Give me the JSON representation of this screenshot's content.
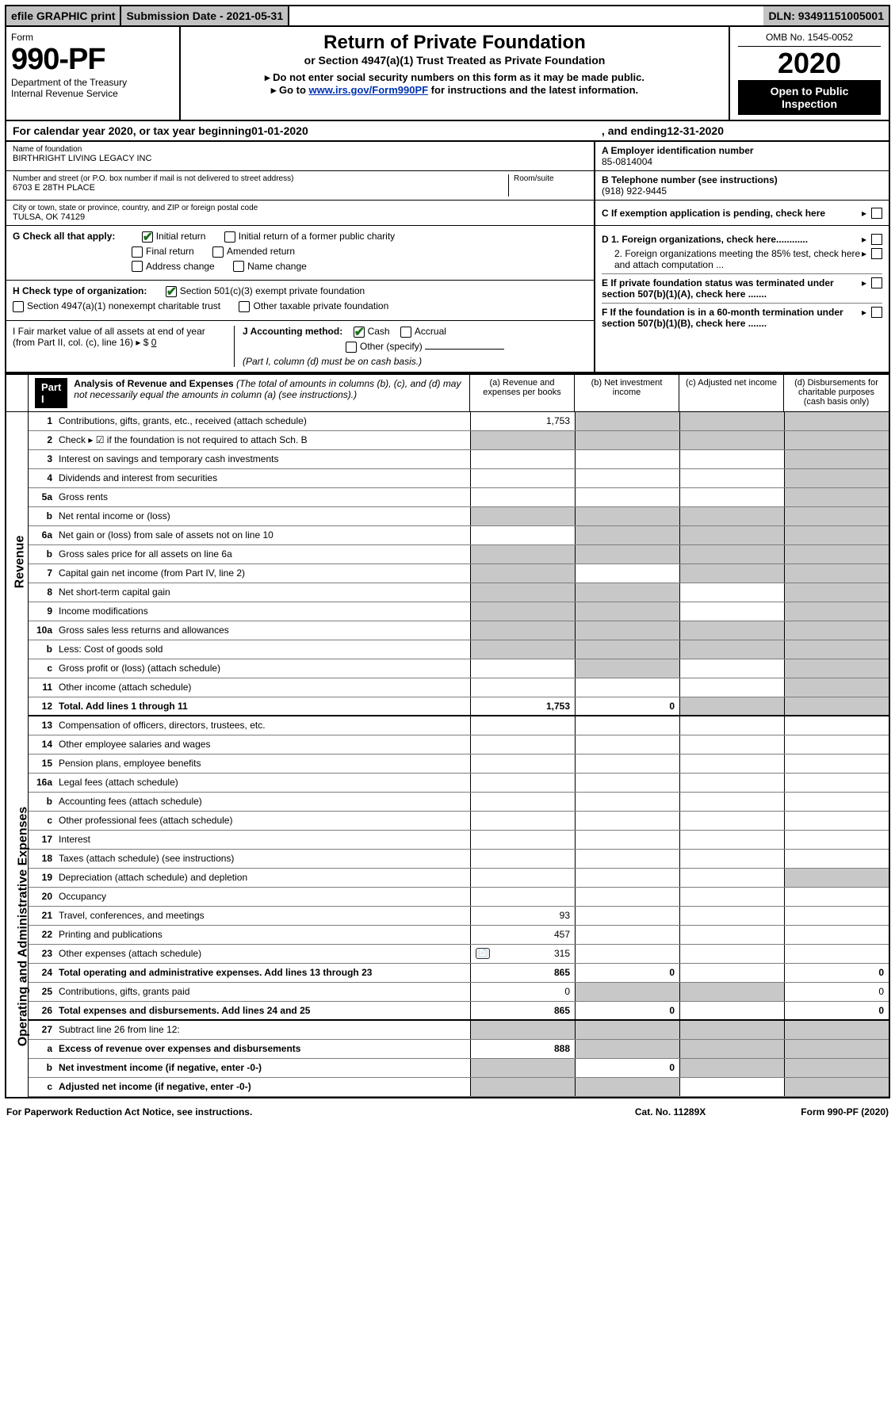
{
  "topbar": {
    "efile": "efile GRAPHIC print",
    "subdate_label": "Submission Date - ",
    "subdate": "2021-05-31",
    "dln_label": "DLN: ",
    "dln": "93491151005001"
  },
  "header": {
    "form_label": "Form",
    "form_no": "990-PF",
    "dept1": "Department of the Treasury",
    "dept2": "Internal Revenue Service",
    "title1": "Return of Private Foundation",
    "title2": "or Section 4947(a)(1) Trust Treated as Private Foundation",
    "instr1": "▸ Do not enter social security numbers on this form as it may be made public.",
    "instr2_prefix": "▸ Go to ",
    "instr2_link": "www.irs.gov/Form990PF",
    "instr2_suffix": " for instructions and the latest information.",
    "omb": "OMB No. 1545-0052",
    "year": "2020",
    "openpub": "Open to Public Inspection"
  },
  "yearrow": {
    "p1": "For calendar year 2020, or tax year beginning ",
    "begin": "01-01-2020",
    "p2": ", and ending ",
    "end": "12-31-2020"
  },
  "info": {
    "name_label": "Name of foundation",
    "name": "BIRTHRIGHT LIVING LEGACY INC",
    "addr_label": "Number and street (or P.O. box number if mail is not delivered to street address)",
    "room_label": "Room/suite",
    "addr": "6703 E 28TH PLACE",
    "city_label": "City or town, state or province, country, and ZIP or foreign postal code",
    "city": "TULSA, OK  74129",
    "A_label": "A Employer identification number",
    "A_val": "85-0814004",
    "B_label": "B Telephone number (see instructions)",
    "B_val": "(918) 922-9445",
    "C_label": "C If exemption application is pending, check here",
    "D1_label": "D 1. Foreign organizations, check here............",
    "D2_label": "2. Foreign organizations meeting the 85% test, check here and attach computation ...",
    "E_label": "E  If private foundation status was terminated under section 507(b)(1)(A), check here .......",
    "F_label": "F  If the foundation is in a 60-month termination under section 507(b)(1)(B), check here .......",
    "G_label": "G Check all that apply:",
    "G_opts": [
      "Initial return",
      "Initial return of a former public charity",
      "Final return",
      "Amended return",
      "Address change",
      "Name change"
    ],
    "G_checked": [
      true,
      false,
      false,
      false,
      false,
      false
    ],
    "H_label": "H Check type of organization:",
    "H_opts": [
      "Section 501(c)(3) exempt private foundation",
      "Section 4947(a)(1) nonexempt charitable trust",
      "Other taxable private foundation"
    ],
    "H_checked": [
      true,
      false,
      false
    ],
    "I_label": "I Fair market value of all assets at end of year (from Part II, col. (c), line 16) ▸ $ ",
    "I_val": "0",
    "J_label": "J Accounting method:",
    "J_opts": [
      "Cash",
      "Accrual",
      "Other (specify)"
    ],
    "J_checked": [
      true,
      false,
      false
    ],
    "J_note": "(Part I, column (d) must be on cash basis.)"
  },
  "part1": {
    "tag": "Part I",
    "title": "Analysis of Revenue and Expenses ",
    "subtitle": "(The total of amounts in columns (b), (c), and (d) may not necessarily equal the amounts in column (a) (see instructions).)",
    "cols": [
      "(a)  Revenue and expenses per books",
      "(b)  Net investment income",
      "(c)  Adjusted net income",
      "(d)  Disbursements for charitable purposes (cash basis only)"
    ]
  },
  "sides": {
    "rev": "Revenue",
    "exp": "Operating and Administrative Expenses"
  },
  "rows": [
    {
      "n": "1",
      "d": "Contributions, gifts, grants, etc., received (attach schedule)",
      "a": "1,753",
      "shade": [
        false,
        true,
        true,
        true
      ]
    },
    {
      "n": "2",
      "d": "Check ▸ ☑ if the foundation is not required to attach Sch. B",
      "shade": [
        true,
        true,
        true,
        true
      ]
    },
    {
      "n": "3",
      "d": "Interest on savings and temporary cash investments",
      "shade": [
        false,
        false,
        false,
        true
      ]
    },
    {
      "n": "4",
      "d": "Dividends and interest from securities",
      "shade": [
        false,
        false,
        false,
        true
      ]
    },
    {
      "n": "5a",
      "d": "Gross rents",
      "shade": [
        false,
        false,
        false,
        true
      ]
    },
    {
      "n": "b",
      "d": "Net rental income or (loss)",
      "shade": [
        true,
        true,
        true,
        true
      ]
    },
    {
      "n": "6a",
      "d": "Net gain or (loss) from sale of assets not on line 10",
      "shade": [
        false,
        true,
        true,
        true
      ]
    },
    {
      "n": "b",
      "d": "Gross sales price for all assets on line 6a",
      "shade": [
        true,
        true,
        true,
        true
      ]
    },
    {
      "n": "7",
      "d": "Capital gain net income (from Part IV, line 2)",
      "shade": [
        true,
        false,
        true,
        true
      ]
    },
    {
      "n": "8",
      "d": "Net short-term capital gain",
      "shade": [
        true,
        true,
        false,
        true
      ]
    },
    {
      "n": "9",
      "d": "Income modifications",
      "shade": [
        true,
        true,
        false,
        true
      ]
    },
    {
      "n": "10a",
      "d": "Gross sales less returns and allowances",
      "shade": [
        true,
        true,
        true,
        true
      ]
    },
    {
      "n": "b",
      "d": "Less: Cost of goods sold",
      "shade": [
        true,
        true,
        true,
        true
      ]
    },
    {
      "n": "c",
      "d": "Gross profit or (loss) (attach schedule)",
      "shade": [
        false,
        true,
        false,
        true
      ]
    },
    {
      "n": "11",
      "d": "Other income (attach schedule)",
      "shade": [
        false,
        false,
        false,
        true
      ]
    },
    {
      "n": "12",
      "d": "Total. Add lines 1 through 11",
      "a": "1,753",
      "b": "0",
      "bold": true,
      "thick": true,
      "shade": [
        false,
        false,
        true,
        true
      ]
    },
    {
      "n": "13",
      "d": "Compensation of officers, directors, trustees, etc.",
      "shade": [
        false,
        false,
        false,
        false
      ]
    },
    {
      "n": "14",
      "d": "Other employee salaries and wages",
      "shade": [
        false,
        false,
        false,
        false
      ]
    },
    {
      "n": "15",
      "d": "Pension plans, employee benefits",
      "shade": [
        false,
        false,
        false,
        false
      ]
    },
    {
      "n": "16a",
      "d": "Legal fees (attach schedule)",
      "shade": [
        false,
        false,
        false,
        false
      ]
    },
    {
      "n": "b",
      "d": "Accounting fees (attach schedule)",
      "shade": [
        false,
        false,
        false,
        false
      ]
    },
    {
      "n": "c",
      "d": "Other professional fees (attach schedule)",
      "shade": [
        false,
        false,
        false,
        false
      ]
    },
    {
      "n": "17",
      "d": "Interest",
      "shade": [
        false,
        false,
        false,
        false
      ]
    },
    {
      "n": "18",
      "d": "Taxes (attach schedule) (see instructions)",
      "shade": [
        false,
        false,
        false,
        false
      ]
    },
    {
      "n": "19",
      "d": "Depreciation (attach schedule) and depletion",
      "shade": [
        false,
        false,
        false,
        true
      ]
    },
    {
      "n": "20",
      "d": "Occupancy",
      "shade": [
        false,
        false,
        false,
        false
      ]
    },
    {
      "n": "21",
      "d": "Travel, conferences, and meetings",
      "a": "93",
      "shade": [
        false,
        false,
        false,
        false
      ]
    },
    {
      "n": "22",
      "d": "Printing and publications",
      "a": "457",
      "shade": [
        false,
        false,
        false,
        false
      ]
    },
    {
      "n": "23",
      "d": "Other expenses (attach schedule)",
      "a": "315",
      "icon": true,
      "shade": [
        false,
        false,
        false,
        false
      ]
    },
    {
      "n": "24",
      "d": "Total operating and administrative expenses. Add lines 13 through 23",
      "a": "865",
      "b": "0",
      "d4": "0",
      "bold": true,
      "shade": [
        false,
        false,
        false,
        false
      ]
    },
    {
      "n": "25",
      "d": "Contributions, gifts, grants paid",
      "a": "0",
      "d4": "0",
      "shade": [
        false,
        true,
        true,
        false
      ]
    },
    {
      "n": "26",
      "d": "Total expenses and disbursements. Add lines 24 and 25",
      "a": "865",
      "b": "0",
      "d4": "0",
      "bold": true,
      "thick": true,
      "shade": [
        false,
        false,
        false,
        false
      ]
    },
    {
      "n": "27",
      "d": "Subtract line 26 from line 12:",
      "shade": [
        true,
        true,
        true,
        true
      ]
    },
    {
      "n": "a",
      "d": "Excess of revenue over expenses and disbursements",
      "a": "888",
      "bold": true,
      "shade": [
        false,
        true,
        true,
        true
      ]
    },
    {
      "n": "b",
      "d": "Net investment income (if negative, enter -0-)",
      "b": "0",
      "bold": true,
      "shade": [
        true,
        false,
        true,
        true
      ]
    },
    {
      "n": "c",
      "d": "Adjusted net income (if negative, enter -0-)",
      "bold": true,
      "shade": [
        true,
        true,
        false,
        true
      ]
    }
  ],
  "footer": {
    "left": "For Paperwork Reduction Act Notice, see instructions.",
    "mid": "Cat. No. 11289X",
    "right": "Form 990-PF (2020)"
  },
  "colors": {
    "shade": "#c8c8c8",
    "link": "#0032b4"
  }
}
